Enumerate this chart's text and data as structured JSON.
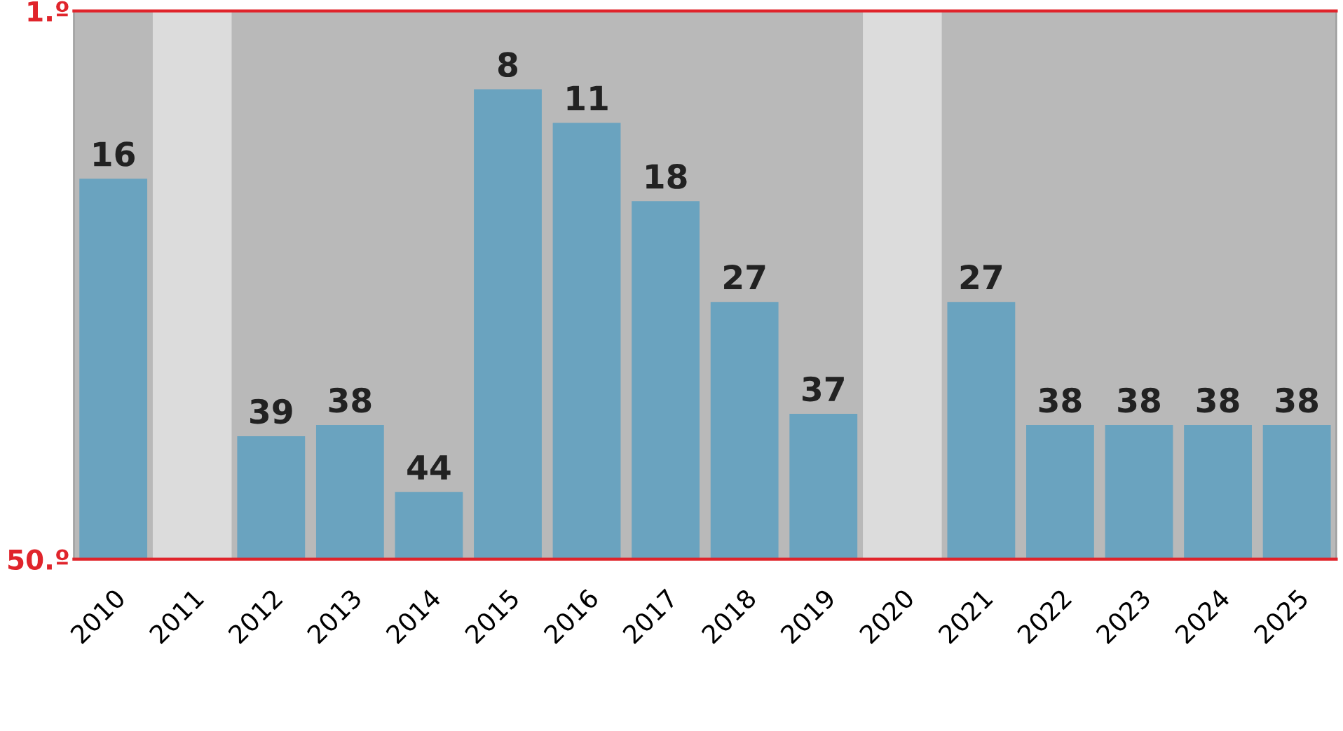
{
  "chart_data": {
    "type": "bar",
    "categories": [
      "2010",
      "2011",
      "2012",
      "2013",
      "2014",
      "2015",
      "2016",
      "2017",
      "2018",
      "2019",
      "2020",
      "2021",
      "2022",
      "2023",
      "2024",
      "2025"
    ],
    "base": [
      50,
      null,
      50,
      50,
      50,
      50,
      50,
      50,
      50,
      50,
      null,
      50,
      50,
      50,
      50,
      50
    ],
    "values": [
      -34,
      null,
      -11,
      -12,
      -6,
      -42,
      -39,
      -32,
      -23,
      -13,
      null,
      -23,
      -12,
      -12,
      -12,
      -12
    ],
    "value_labels": [
      "16",
      null,
      "39",
      "38",
      "44",
      "8",
      "11",
      "18",
      "27",
      "37",
      null,
      "27",
      "38",
      "38",
      "38",
      "38"
    ],
    "color": "#6aa3bf",
    "ylim": [
      50,
      1
    ],
    "yticks": [
      {
        "value": 50,
        "label": "50.º"
      },
      {
        "value": 1,
        "label": "1.º"
      }
    ],
    "bands": [
      {
        "axis": "x",
        "from": "2011",
        "to": "2011",
        "color": "#dcdcdc"
      },
      {
        "axis": "x",
        "from": "2020",
        "to": "2020",
        "color": "#dcdcdc"
      }
    ],
    "grid": false
  }
}
